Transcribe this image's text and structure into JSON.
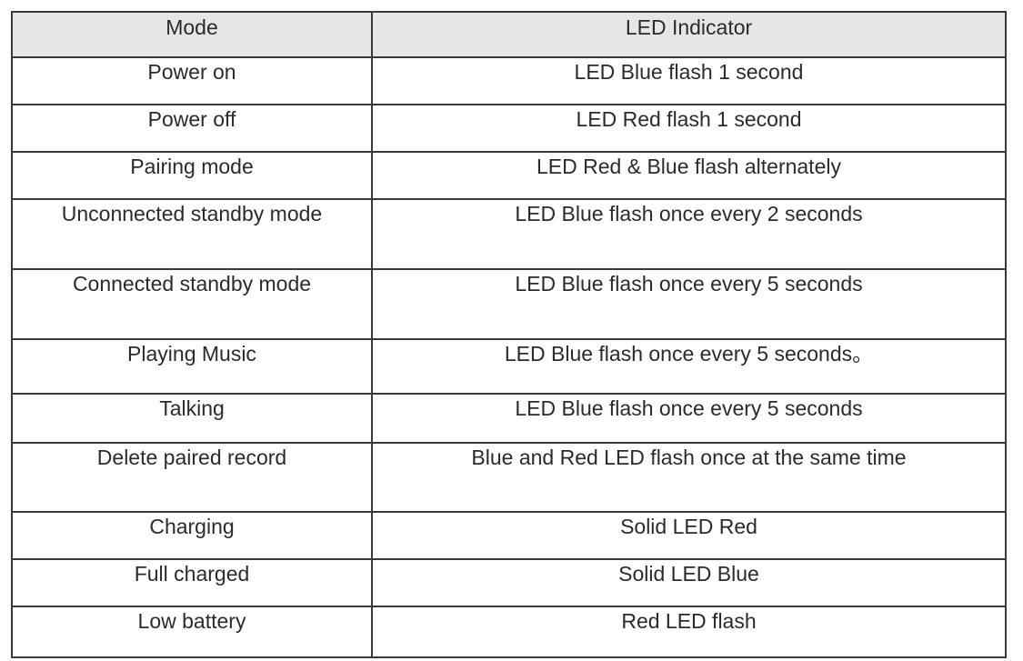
{
  "table": {
    "headers": {
      "mode": "Mode",
      "led": "LED Indicator"
    },
    "rows": [
      {
        "mode": "Power on",
        "led": "LED Blue flash 1 second"
      },
      {
        "mode": "Power off",
        "led": "LED Red flash 1 second"
      },
      {
        "mode": "Pairing mode",
        "led": "LED Red & Blue flash alternately"
      },
      {
        "mode": "Unconnected standby mode",
        "led": "LED Blue flash once every 2 seconds"
      },
      {
        "mode": "Connected standby mode",
        "led": "LED Blue flash once every 5 seconds"
      },
      {
        "mode": "Playing Music",
        "led": "LED Blue flash once every 5 seconds。"
      },
      {
        "mode": "Talking",
        "led": "LED Blue flash once every 5 seconds"
      },
      {
        "mode": "Delete paired record",
        "led": "Blue and Red LED flash once at the same time"
      },
      {
        "mode": "Charging",
        "led": "Solid LED Red"
      },
      {
        "mode": "Full charged",
        "led": "Solid LED Blue"
      },
      {
        "mode": "Low battery",
        "led": "Red LED flash"
      }
    ]
  }
}
